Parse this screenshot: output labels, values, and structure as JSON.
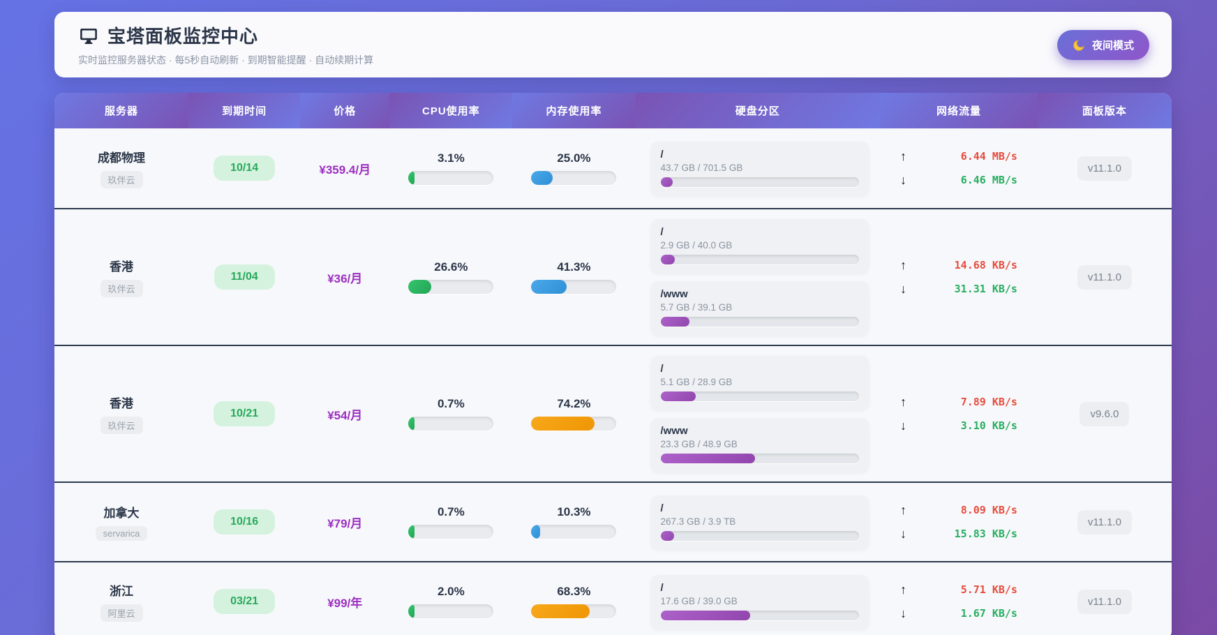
{
  "header": {
    "title": "宝塔面板监控中心",
    "subtitle": "实时监控服务器状态 · 每5秒自动刷新 · 到期智能提醒 · 自动续期计算",
    "night_mode_label": "夜间模式"
  },
  "table": {
    "columns": [
      "服务器",
      "到期时间",
      "价格",
      "CPU使用率",
      "内存使用率",
      "硬盘分区",
      "网络流量",
      "面板版本"
    ],
    "up_arrow": "↑",
    "down_arrow": "↓",
    "rows": [
      {
        "name": "成都物理",
        "provider": "玖伴云",
        "expiry": "10/14",
        "price": "¥359.4/月",
        "cpu": {
          "label": "3.1%",
          "pct": 3.1
        },
        "mem": {
          "label": "25.0%",
          "pct": 25.0,
          "color": "blue"
        },
        "disks": [
          {
            "mount": "/",
            "usage": "43.7 GB / 701.5 GB",
            "pct": 6.2
          }
        ],
        "net": {
          "up": "6.44 MB/s",
          "down": "6.46 MB/s"
        },
        "version": "v11.1.0"
      },
      {
        "name": "香港",
        "provider": "玖伴云",
        "expiry": "11/04",
        "price": "¥36/月",
        "cpu": {
          "label": "26.6%",
          "pct": 26.6
        },
        "mem": {
          "label": "41.3%",
          "pct": 41.3,
          "color": "blue"
        },
        "disks": [
          {
            "mount": "/",
            "usage": "2.9 GB / 40.0 GB",
            "pct": 7.3
          },
          {
            "mount": "/www",
            "usage": "5.7 GB / 39.1 GB",
            "pct": 14.6
          }
        ],
        "net": {
          "up": "14.68 KB/s",
          "down": "31.31 KB/s"
        },
        "version": "v11.1.0"
      },
      {
        "name": "香港",
        "provider": "玖伴云",
        "expiry": "10/21",
        "price": "¥54/月",
        "cpu": {
          "label": "0.7%",
          "pct": 0.7
        },
        "mem": {
          "label": "74.2%",
          "pct": 74.2,
          "color": "orange"
        },
        "disks": [
          {
            "mount": "/",
            "usage": "5.1 GB / 28.9 GB",
            "pct": 17.6
          },
          {
            "mount": "/www",
            "usage": "23.3 GB / 48.9 GB",
            "pct": 47.6
          }
        ],
        "net": {
          "up": "7.89 KB/s",
          "down": "3.10 KB/s"
        },
        "version": "v9.6.0"
      },
      {
        "name": "加拿大",
        "provider": "servarica",
        "expiry": "10/16",
        "price": "¥79/月",
        "cpu": {
          "label": "0.7%",
          "pct": 0.7
        },
        "mem": {
          "label": "10.3%",
          "pct": 10.3,
          "color": "blue"
        },
        "disks": [
          {
            "mount": "/",
            "usage": "267.3 GB / 3.9 TB",
            "pct": 6.7
          }
        ],
        "net": {
          "up": "8.09 KB/s",
          "down": "15.83 KB/s"
        },
        "version": "v11.1.0"
      },
      {
        "name": "浙江",
        "provider": "阿里云",
        "expiry": "03/21",
        "price": "¥99/年",
        "cpu": {
          "label": "2.0%",
          "pct": 2.0
        },
        "mem": {
          "label": "68.3%",
          "pct": 68.3,
          "color": "orange"
        },
        "disks": [
          {
            "mount": "/",
            "usage": "17.6 GB / 39.0 GB",
            "pct": 45.1
          }
        ],
        "net": {
          "up": "5.71 KB/s",
          "down": "1.67 KB/s"
        },
        "version": "v11.1.0"
      }
    ]
  },
  "colors": {
    "bg_gradient_start": "#6572e4",
    "bg_gradient_end": "#7b4aa4",
    "header_cell_blue": "#6f79e2",
    "header_cell_purple": "#7a53b4",
    "expiry_green_bg": "#d5f2de",
    "expiry_green_text": "#27a95c",
    "price_purple": "#9b2fc0",
    "cpu_bar_green": "#27ae60",
    "mem_bar_blue": "#3498db",
    "mem_bar_orange": "#f39c12",
    "disk_bar_purple": "#9b59b6",
    "net_up_red": "#e74c3c",
    "net_down_green": "#27ae60",
    "row_separator": "#2b3950",
    "night_btn_start": "#6a6fd8",
    "night_btn_end": "#8f56c9"
  }
}
